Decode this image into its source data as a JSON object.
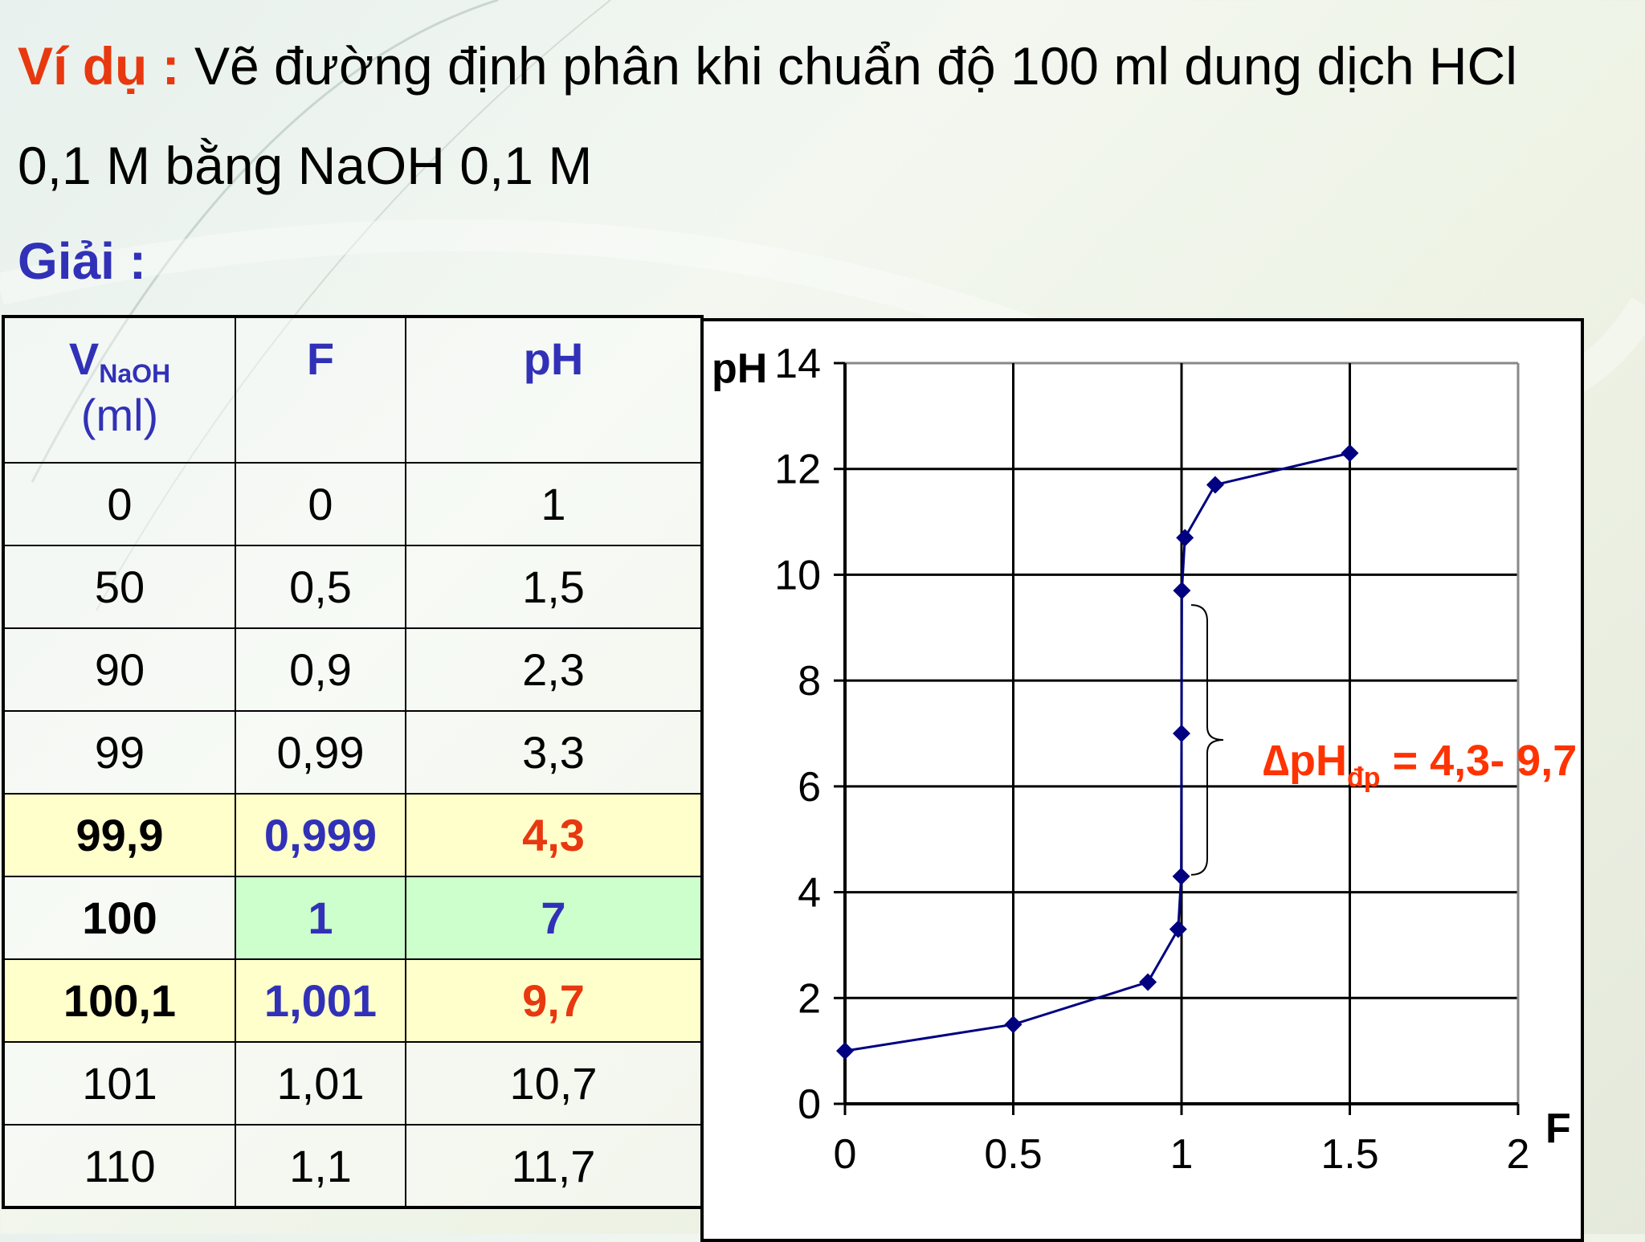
{
  "slide": {
    "title_prefix": "Ví dụ :",
    "title_line1": " Vẽ đường định phân khi chuẩn độ 100 ml dung dịch HCl",
    "title_line2": "0,1 M bằng NaOH 0,1 M",
    "solution_label": "Giải :"
  },
  "table": {
    "headers": {
      "v_main": "V",
      "v_sub": "NaOH",
      "v_unit": "(ml)",
      "f": "F",
      "ph": "pH"
    },
    "rows": [
      {
        "v": "0",
        "f": "0",
        "ph": "1"
      },
      {
        "v": "50",
        "f": "0,5",
        "ph": "1,5"
      },
      {
        "v": "90",
        "f": "0,9",
        "ph": "2,3"
      },
      {
        "v": "99",
        "f": "0,99",
        "ph": "3,3"
      },
      {
        "v": "99,9",
        "f": "0,999",
        "ph": "4,3"
      },
      {
        "v": "100",
        "f": "1",
        "ph": "7"
      },
      {
        "v": "100,1",
        "f": "1,001",
        "ph": "9,7"
      },
      {
        "v": "101",
        "f": "1,01",
        "ph": "10,7"
      },
      {
        "v": "110",
        "f": "1,1",
        "ph": "11,7"
      }
    ]
  },
  "annotation": {
    "delta_label": "∆pH",
    "delta_sub": "đp",
    "delta_value": " = 4,3- 9,7"
  },
  "chart_data": {
    "type": "line",
    "xlabel": "F",
    "ylabel": "pH",
    "xlim": [
      0,
      2
    ],
    "ylim": [
      0,
      14
    ],
    "x_ticks": [
      "0",
      "0.5",
      "1",
      "1.5",
      "2"
    ],
    "y_ticks": [
      "0",
      "2",
      "4",
      "6",
      "8",
      "10",
      "12",
      "14"
    ],
    "grid": true,
    "series": [
      {
        "x": [
          0,
          0.5,
          0.9,
          0.99,
          0.999,
          1,
          1.001,
          1.01,
          1.1,
          1.5
        ],
        "y": [
          1,
          1.5,
          2.3,
          3.3,
          4.3,
          7,
          9.7,
          10.7,
          11.7,
          12.3
        ],
        "color": "#000080"
      }
    ]
  }
}
